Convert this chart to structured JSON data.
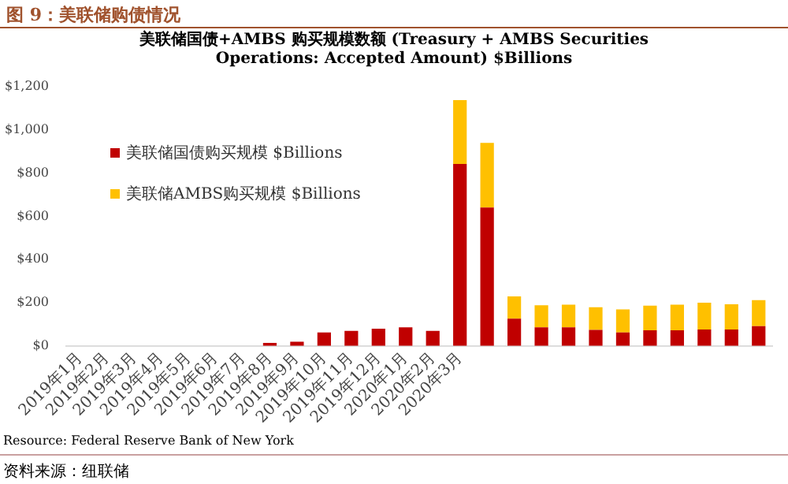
{
  "chart_data": {
    "type": "bar",
    "title": "图 9：美联储购债情况",
    "subtitle": "美联储国债+AMBS 购买规模数额 (Treasury + AMBS Securities Operations: Accepted Amount) $Billions",
    "categories": [
      "2019年1月",
      "2019年2月",
      "2019年3月",
      "2019年4月",
      "2019年5月",
      "2019年6月",
      "2019年7月",
      "2019年8月",
      "2019年9月",
      "2019年10月",
      "2019年11月",
      "2019年12月",
      "2020年1月",
      "2020年2月",
      "2020年3月",
      null,
      null,
      null,
      null,
      null,
      null,
      null,
      null,
      null,
      null,
      null
    ],
    "series": [
      {
        "name": "美联储国债购买规模 $Billions",
        "color": "#c00000",
        "values": [
          0,
          0,
          0,
          0,
          0,
          0,
          0,
          14,
          19,
          62,
          69,
          79,
          86,
          69,
          842,
          641,
          126,
          86,
          86,
          74,
          62,
          72,
          72,
          76,
          76,
          91
        ]
      },
      {
        "name": "美联储AMBS购买规模 $Billions",
        "color": "#ffc000",
        "values": [
          0,
          0,
          0,
          0,
          0,
          0,
          0,
          0,
          0,
          0,
          0,
          0,
          0,
          0,
          296,
          299,
          103,
          102,
          105,
          105,
          107,
          114,
          119,
          124,
          117,
          121
        ]
      }
    ],
    "stacked": true,
    "ylim": [
      0,
      1200
    ],
    "yticks": [
      {
        "value": 0,
        "label": "$0"
      },
      {
        "value": 200,
        "label": "$200"
      },
      {
        "value": 400,
        "label": "$400"
      },
      {
        "value": 600,
        "label": "$600"
      },
      {
        "value": 800,
        "label": "$800"
      },
      {
        "value": 1000,
        "label": "$1,000"
      },
      {
        "value": 1200,
        "label": "$1,200"
      }
    ],
    "grid": false,
    "legend": "top left",
    "annotations": [
      "Resource: Federal Reserve Bank of New York",
      "资料来源：纽联储"
    ]
  }
}
